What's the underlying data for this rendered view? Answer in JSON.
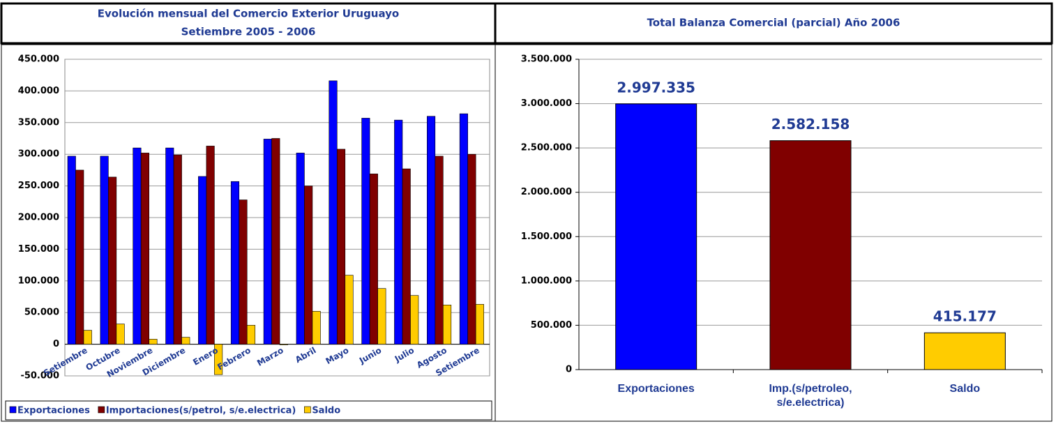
{
  "chart_data": [
    {
      "type": "bar",
      "title": "Evolución mensual del Comercio Exterior Uruguayo",
      "subtitle": "Setiembre 2005 - 2006",
      "categories": [
        "Setiembre",
        "Octubre",
        "Noviembre",
        "Diciembre",
        "Enero",
        "Febrero",
        "Marzo",
        "Abril",
        "Mayo",
        "Junio",
        "Julio",
        "Agosto",
        "Setiembre"
      ],
      "series": [
        {
          "name": "Exportaciones",
          "color": "#0000ff",
          "values": [
            297000,
            297000,
            310000,
            310000,
            265000,
            257000,
            324000,
            302000,
            416000,
            357000,
            354000,
            360000,
            364000
          ]
        },
        {
          "name": "Importaciones(s/petrol, s/e.electrica)",
          "color": "#800000",
          "values": [
            275000,
            264000,
            302000,
            299000,
            313000,
            228000,
            325000,
            250000,
            308000,
            269000,
            277000,
            297000,
            300000
          ]
        },
        {
          "name": "Saldo",
          "color": "#ffcc00",
          "values": [
            22000,
            32000,
            8000,
            11000,
            -48000,
            30000,
            -1000,
            52000,
            109000,
            88000,
            77000,
            62000,
            63000
          ]
        }
      ],
      "ylim": [
        -50000,
        450000
      ],
      "yticks": [
        {
          "value": -50000,
          "label": "-50.000"
        },
        0,
        {
          "value": 50000,
          "label": "50.000"
        },
        {
          "value": 100000,
          "label": "100.000"
        },
        {
          "value": 150000,
          "label": "150.000"
        },
        {
          "value": 200000,
          "label": "200.000"
        },
        {
          "value": 250000,
          "label": "250.000"
        },
        {
          "value": 300000,
          "label": "300.000"
        },
        {
          "value": 350000,
          "label": "350.000"
        },
        {
          "value": 400000,
          "label": "400.000"
        },
        {
          "value": 450000,
          "label": "450.000"
        }
      ],
      "grid": true,
      "legend": "bottom"
    },
    {
      "type": "bar",
      "title": "Total Balanza Comercial (parcial) Año 2006",
      "categories": [
        "Exportaciones",
        "Imp.(s/petroleo, s/e.electrica)",
        "Saldo"
      ],
      "values": [
        2997335,
        2582158,
        415177
      ],
      "value_labels": [
        "2.997.335",
        "2.582.158",
        "415.177"
      ],
      "colors": [
        "#0000ff",
        "#800000",
        "#ffcc00"
      ],
      "ylim": [
        0,
        3500000
      ],
      "yticks": [
        0,
        {
          "value": 500000,
          "label": "500.000"
        },
        {
          "value": 1000000,
          "label": "1.000.000"
        },
        {
          "value": 1500000,
          "label": "1.500.000"
        },
        {
          "value": 2000000,
          "label": "2.000.000"
        },
        {
          "value": 2500000,
          "label": "2.500.000"
        },
        {
          "value": 3000000,
          "label": "3.000.000"
        },
        {
          "value": 3500000,
          "label": "3.500.000"
        }
      ],
      "grid": true
    }
  ]
}
